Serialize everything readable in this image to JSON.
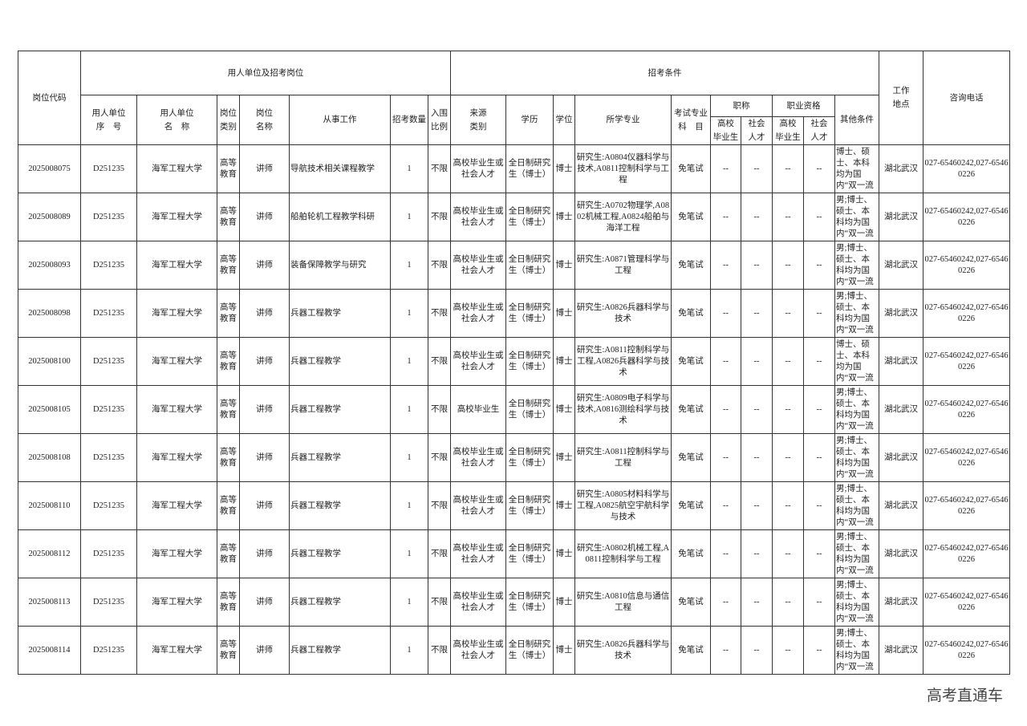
{
  "table": {
    "group_1": "用人单位及招考岗位",
    "group_2": "招考条件",
    "group_zhicheng": "职称",
    "group_zhiye": "职业资格",
    "columns": [
      "岗位代码",
      "用人单位\n序　号",
      "用人单位\n名　称",
      "岗位\n类别",
      "岗位\n名称",
      "从事工作",
      "招考数量",
      "入围\n比例",
      "来源\n类别",
      "学历",
      "学位",
      "所学专业",
      "考试专业\n科　目",
      "高校\n毕业生",
      "社会\n人才",
      "高校\n毕业生",
      "社会\n人才",
      "其他条件",
      "工作\n地点",
      "咨询电话"
    ],
    "rows": [
      [
        "2025008075",
        "D251235",
        "海军工程大学",
        "高等教育",
        "讲师",
        "导航技术相关课程教学",
        1,
        "不限",
        "高校毕业生或社会人才",
        "全日制研究生（博士）",
        "博士",
        "研究生:A0804仪器科学与技术,A0811控制科学与工程",
        "免笔试",
        "--",
        "--",
        "--",
        "--",
        "博士、硕士、本科均为国内“双一流",
        "湖北武汉",
        "027-65460242,027-65460226"
      ],
      [
        "2025008089",
        "D251235",
        "海军工程大学",
        "高等教育",
        "讲师",
        "船舶轮机工程教学科研",
        1,
        "不限",
        "高校毕业生或社会人才",
        "全日制研究生（博士）",
        "博士",
        "研究生:A0702物理学,A0802机械工程,A0824船舶与海洋工程",
        "免笔试",
        "--",
        "--",
        "--",
        "--",
        "男;博士、硕士、本科均为国内“双一流",
        "湖北武汉",
        "027-65460242,027-65460226"
      ],
      [
        "2025008093",
        "D251235",
        "海军工程大学",
        "高等教育",
        "讲师",
        "装备保障教学与研究",
        1,
        "不限",
        "高校毕业生或社会人才",
        "全日制研究生（博士）",
        "博士",
        "研究生:A0871管理科学与工程",
        "免笔试",
        "--",
        "--",
        "--",
        "--",
        "男;博士、硕士、本科均为国内“双一流",
        "湖北武汉",
        "027-65460242,027-65460226"
      ],
      [
        "2025008098",
        "D251235",
        "海军工程大学",
        "高等教育",
        "讲师",
        "兵器工程教学",
        1,
        "不限",
        "高校毕业生或社会人才",
        "全日制研究生（博士）",
        "博士",
        "研究生:A0826兵器科学与技术",
        "免笔试",
        "--",
        "--",
        "--",
        "--",
        "男;博士、硕士、本科均为国内“双一流",
        "湖北武汉",
        "027-65460242,027-65460226"
      ],
      [
        "2025008100",
        "D251235",
        "海军工程大学",
        "高等教育",
        "讲师",
        "兵器工程教学",
        1,
        "不限",
        "高校毕业生或社会人才",
        "全日制研究生（博士）",
        "博士",
        "研究生:A0811控制科学与工程,A0826兵器科学与技术",
        "免笔试",
        "--",
        "--",
        "--",
        "--",
        "博士、硕士、本科均为国内“双一流",
        "湖北武汉",
        "027-65460242,027-65460226"
      ],
      [
        "2025008105",
        "D251235",
        "海军工程大学",
        "高等教育",
        "讲师",
        "兵器工程教学",
        1,
        "不限",
        "高校毕业生",
        "全日制研究生（博士）",
        "博士",
        "研究生:A0809电子科学与技术,A0816测绘科学与技术",
        "免笔试",
        "--",
        "--",
        "--",
        "--",
        "男;博士、硕士、本科均为国内“双一流",
        "湖北武汉",
        "027-65460242,027-65460226"
      ],
      [
        "2025008108",
        "D251235",
        "海军工程大学",
        "高等教育",
        "讲师",
        "兵器工程教学",
        1,
        "不限",
        "高校毕业生或社会人才",
        "全日制研究生（博士）",
        "博士",
        "研究生:A0811控制科学与工程",
        "免笔试",
        "--",
        "--",
        "--",
        "--",
        "男;博士、硕士、本科均为国内“双一流",
        "湖北武汉",
        "027-65460242,027-65460226"
      ],
      [
        "2025008110",
        "D251235",
        "海军工程大学",
        "高等教育",
        "讲师",
        "兵器工程教学",
        1,
        "不限",
        "高校毕业生或社会人才",
        "全日制研究生（博士）",
        "博士",
        "研究生:A0805材料科学与工程,A0825航空宇航科学与技术",
        "免笔试",
        "--",
        "--",
        "--",
        "--",
        "男;博士、硕士、本科均为国内“双一流",
        "湖北武汉",
        "027-65460242,027-65460226"
      ],
      [
        "2025008112",
        "D251235",
        "海军工程大学",
        "高等教育",
        "讲师",
        "兵器工程教学",
        1,
        "不限",
        "高校毕业生或社会人才",
        "全日制研究生（博士）",
        "博士",
        "研究生:A0802机械工程,A0811控制科学与工程",
        "免笔试",
        "--",
        "--",
        "--",
        "--",
        "男;博士、硕士、本科均为国内“双一流",
        "湖北武汉",
        "027-65460242,027-65460226"
      ],
      [
        "2025008113",
        "D251235",
        "海军工程大学",
        "高等教育",
        "讲师",
        "兵器工程教学",
        1,
        "不限",
        "高校毕业生或社会人才",
        "全日制研究生（博士）",
        "博士",
        "研究生:A0810信息与通信工程",
        "免笔试",
        "--",
        "--",
        "--",
        "--",
        "男;博士、硕士、本科均为国内“双一流",
        "湖北武汉",
        "027-65460242,027-65460226"
      ],
      [
        "2025008114",
        "D251235",
        "海军工程大学",
        "高等教育",
        "讲师",
        "兵器工程教学",
        1,
        "不限",
        "高校毕业生或社会人才",
        "全日制研究生（博士）",
        "博士",
        "研究生:A0826兵器科学与技术",
        "免笔试",
        "--",
        "--",
        "--",
        "--",
        "男;博士、硕士、本科均为国内“双一流",
        "湖北武汉",
        "027-65460242,027-65460226"
      ]
    ]
  },
  "watermark": "高考直通车"
}
